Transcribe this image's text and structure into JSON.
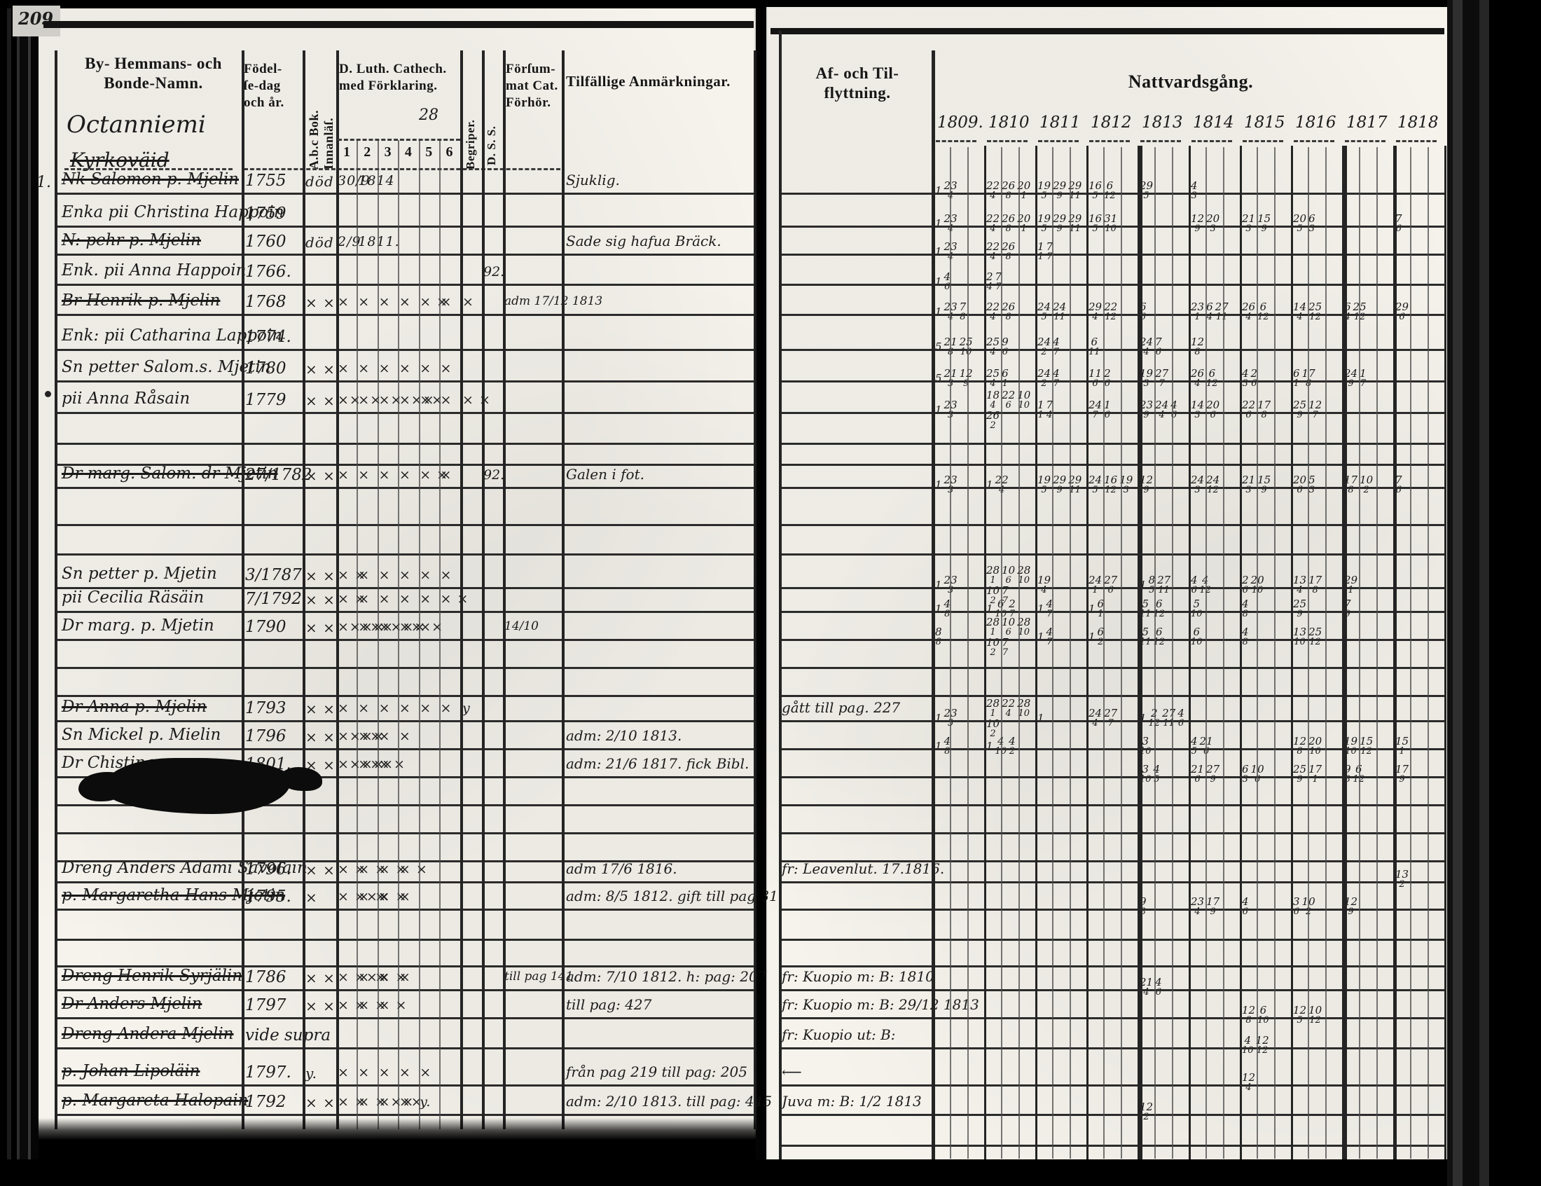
{
  "page_number": "209.",
  "left_page": {
    "header": {
      "col_name_line1": "By- Hemmans- och",
      "col_name_line2": "Bonde-Namn.",
      "place_name": "Octanniemi",
      "place_name_struck": "Kyrkoväid",
      "margin_mark": "1.",
      "col_birth_l1": "Födel-",
      "col_birth_l2": "ſe-dag",
      "col_birth_l3": "och år.",
      "col_abc": "A.b.c Bok. Innanläſ.",
      "col_cat_l1": "D. Luth. Cathech.",
      "col_cat_l2": "med Förklaring.",
      "cat_scribble": "28",
      "cat_subcols": [
        "1",
        "2",
        "3",
        "4",
        "5",
        "6"
      ],
      "col_begriper": "Begriper.",
      "col_dss": "D. S. S.",
      "col_forsummat_l1": "Förſum-",
      "col_forsummat_l2": "mat Cat.",
      "col_forsummat_l3": "Förhör.",
      "col_remarks": "Tilfällige Anmärkningar."
    },
    "rows": [
      {
        "name": "Nk Salomon p. Mjelin",
        "struck": true,
        "birth": "1755",
        "abc": "död",
        "cat": [
          "30/9",
          "1814",
          "",
          "",
          "",
          ""
        ],
        "beg": "",
        "dss": "",
        "fors": "",
        "remark": "Sjuklig.",
        "moving": "",
        "natt": [
          "1 23/4",
          "22/4 26/8 20/1",
          "19/5 29/9 29/11",
          "16/5 6/12",
          "29/5",
          "4/3",
          "",
          "",
          "",
          ""
        ]
      },
      {
        "name": "Enka pii Christina Happoin",
        "struck": false,
        "birth": "1759",
        "abc": "",
        "cat": [
          "",
          "",
          "",
          "",
          "",
          ""
        ],
        "beg": "",
        "dss": "",
        "fors": "",
        "remark": "",
        "moving": "",
        "natt": [
          "1 23/4",
          "22/4 26/8 20/1",
          "19/5 29/9 29/11",
          "16/5 31/10",
          "",
          "12/9 20/3",
          "21/3 15/9",
          "20/5 6/3",
          "",
          "7/6"
        ]
      },
      {
        "name": "N: pehr p. Mjelin",
        "struck": true,
        "birth": "1760",
        "abc": "död",
        "cat": [
          "2/9",
          "1811.",
          "",
          "",
          "",
          ""
        ],
        "beg": "",
        "dss": "",
        "fors": "",
        "remark": "Sade sig hafua Bräck.",
        "moving": "",
        "natt": [
          "1 23/4",
          "22/4 26/8",
          "1/1 7/7",
          "",
          "",
          "",
          "",
          "",
          "",
          ""
        ]
      },
      {
        "name": "Enk. pii Anna Happoin",
        "struck": false,
        "birth": "1766.",
        "abc": "",
        "cat": [
          "",
          "",
          "",
          "",
          "",
          ""
        ],
        "beg": "",
        "dss": "92.",
        "fors": "",
        "remark": "",
        "moving": "",
        "natt": [
          "1 4/6",
          "2/4 7/7",
          "",
          "",
          "",
          "",
          "",
          "",
          "",
          ""
        ]
      },
      {
        "name": "Br Henrik p. Mjelin",
        "struck": true,
        "birth": "1768",
        "abc": "× ×",
        "cat": [
          "×",
          "×",
          "×",
          "×",
          "× ×",
          "×"
        ],
        "beg": "×",
        "dss": "",
        "fors": "adm 17/12 1813",
        "remark": "",
        "moving": "",
        "natt": [
          "1 23/4 7/8",
          "22/4 26/8",
          "24/5 24/11",
          "29/4 22/12",
          "6/6",
          "23/1 6/4 27/11",
          "26/4 6/12",
          "14/4 25/12",
          "6/4 25/12",
          "29/6"
        ]
      },
      {
        "name": "Enk: pii Catharina Lappoin",
        "struck": false,
        "birth": "1774.",
        "abc": "",
        "cat": [
          "",
          "",
          "",
          "",
          "",
          ""
        ],
        "beg": "",
        "dss": "",
        "fors": "",
        "remark": "",
        "moving": "",
        "natt": [
          "5 21/8 25/10",
          "25/4 9/6",
          "24/2 4/7",
          "6/11",
          "24/4 7/6",
          "12/8",
          "",
          "",
          "",
          ""
        ]
      },
      {
        "name": "Sn petter Salom.s. Mjetin",
        "struck": false,
        "birth": "1780",
        "abc": "× ×",
        "cat": [
          "×",
          "×",
          "×",
          "×",
          "×",
          "×"
        ],
        "beg": "",
        "dss": "",
        "fors": "",
        "remark": "",
        "moving": "",
        "natt": [
          "5 21/3 12/9",
          "25/4 6/1",
          "24/2 4/7",
          "11/6 2/6",
          "19/3 27/7",
          "26/4 6/12",
          "4/3 2/6",
          "6/1 17/8",
          "24/9 1/7",
          ""
        ]
      },
      {
        "name": "pii Anna Råsain",
        "struck": false,
        "birth": "1779",
        "abc": "× ×",
        "cat": [
          "××",
          "××",
          "××",
          "×××",
          "××",
          "×"
        ],
        "beg": "× ×",
        "dss": "",
        "fors": "",
        "remark": "",
        "moving": "",
        "natt": [
          "1 23/3",
          "18/4 22/6 10/10 26/2",
          "1/1 7/4",
          "24/7 1/6",
          "23/9 24/4 4/6",
          "14/3 20/6",
          "22/6 17/8",
          "25/9 12/7",
          "",
          ""
        ]
      },
      {
        "name": "Dr marg. Salom. dr Mjetin",
        "struck": true,
        "birth": "27/1782",
        "abc": "× ×",
        "cat": [
          "×",
          "×",
          "×",
          "×",
          "× ×",
          "×"
        ],
        "beg": "",
        "dss": "92.",
        "fors": "",
        "remark": "Galen i fot.",
        "moving": "",
        "natt": [
          "1 23/3",
          "1 22/4",
          "19/5 29/9 29/11",
          "24/5 16/12 19/3",
          "12/9",
          "24/3 24/12",
          "21/3 15/9",
          "20/6 5/3",
          "17/8 10/2",
          "7/6"
        ]
      },
      {
        "name": "Sn petter p. Mjetin",
        "struck": false,
        "birth": "3/1787.",
        "abc": "× ×",
        "cat": [
          "× ×",
          "×",
          "×",
          "×",
          "×",
          "×"
        ],
        "beg": "",
        "dss": "",
        "fors": "",
        "remark": "",
        "moving": "",
        "natt": [
          "1 23/3",
          "28/1 10/6 28/10 10/2 7/7",
          "19/4",
          "24/1 27/6",
          "1 8/5 27/11",
          "4/6 4/12",
          "2/6 20/10",
          "13/4 17/8",
          "29/1",
          ""
        ]
      },
      {
        "name": "pii Cecilia Räsäin",
        "struck": false,
        "birth": "7/1792",
        "abc": "× ×",
        "cat": [
          "× ×",
          "×",
          "×",
          "×",
          "×",
          "× ×"
        ],
        "beg": "",
        "dss": "",
        "fors": "",
        "remark": "",
        "moving": "",
        "natt": [
          "1 4/8",
          "1 6/10 2/7",
          "1 4/7",
          "1 6/1",
          "5/11 6/12",
          "5/10",
          "4/8",
          "25/9",
          "7/9",
          ""
        ]
      },
      {
        "name": "Dr marg. p. Mjetin",
        "struck": false,
        "birth": "1790",
        "abc": "× ×",
        "cat": [
          "××××",
          "×××",
          "××××",
          "××",
          "××",
          ""
        ],
        "beg": "",
        "dss": "",
        "fors": "14/10",
        "remark": "",
        "moving": "",
        "natt": [
          "8/8",
          "28/1 10/6 28/10 10/2 7/7",
          "1 4/7",
          "1 6/2",
          "5/11 6/12",
          "6/10",
          "4/8",
          "13/10 25/12",
          "",
          ""
        ]
      },
      {
        "name": "Dr Anna p. Mjelin",
        "struck": true,
        "birth": "1793",
        "abc": "× ×",
        "cat": [
          "×",
          "×",
          "×",
          "×",
          "×",
          "×"
        ],
        "beg": "y",
        "dss": "",
        "fors": "",
        "remark": "",
        "moving": "gått till pag. 227",
        "natt": [
          "1 23/5",
          "28/1 22/4 28/10 10/2",
          "1",
          "24/4 27/7",
          "1 2/12 27/11 4/6",
          "",
          "",
          "",
          "",
          ""
        ]
      },
      {
        "name": "Sn Mickel p. Mielin",
        "struck": false,
        "birth": "1796",
        "abc": "× ×",
        "cat": [
          "××××",
          "××",
          "×",
          "×",
          "",
          ""
        ],
        "beg": "",
        "dss": "",
        "fors": "",
        "remark": "adm: 2/10 1813.",
        "moving": "",
        "natt": [
          "1 4/8",
          "1 4/10 4/2",
          "",
          "",
          "3/10",
          "4/5 21/6",
          "",
          "12/8 20/10",
          "19/10 15/12",
          "15/1"
        ]
      },
      {
        "name": "Dr Chistina p.",
        "struck": false,
        "birth": "1801.",
        "abc": "× ×",
        "cat": [
          "××××",
          "××××",
          "×",
          "",
          "",
          ""
        ],
        "beg": "",
        "dss": "",
        "fors": "",
        "remark": "adm: 21/6 1817. fick Bibl.",
        "moving": "",
        "natt": [
          "",
          "",
          "",
          "",
          "3/10 4/5",
          "21/6 27/9",
          "6/3 10/6",
          "25/9 17/1",
          "9/8 6/12",
          "17/9"
        ]
      },
      {
        "name": "Dreng Anders Adami Savolain",
        "struck": false,
        "birth": "1796.",
        "abc": "× ×",
        "cat": [
          "× ×",
          "× ×",
          "× ×",
          "× ×",
          "",
          ""
        ],
        "beg": "",
        "dss": "",
        "fors": "",
        "remark": "adm 17/6 1816.",
        "moving": "fr: Leavenlut. 17.1816.",
        "natt": [
          "",
          "",
          "",
          "",
          "",
          "",
          "",
          "",
          "",
          "13/2"
        ]
      },
      {
        "name": "p. Margaretha Hans Mjetin",
        "struck": true,
        "birth": "1795.",
        "abc": "×",
        "cat": [
          "× ×××",
          "× ×",
          "× ×",
          "×",
          "",
          ""
        ],
        "beg": "",
        "dss": "",
        "fors": "",
        "remark": "adm: 8/5 1812. gift till pag 31",
        "moving": "",
        "natt": [
          "",
          "",
          "",
          "",
          "9/8",
          "23/4 17/9",
          "4/6",
          "3/6 10/2",
          "12/9",
          ""
        ]
      },
      {
        "name": "Dreng Henrik Syrjälin",
        "struck": true,
        "birth": "1786",
        "abc": "× ×",
        "cat": [
          "× ×××",
          "× ×",
          "× ×",
          "×",
          "",
          ""
        ],
        "beg": "",
        "dss": "",
        "fors": "till pag 141.",
        "remark": "adm: 7/10 1812. h: pag: 207",
        "moving": "fr: Kuopio m: B: 1810",
        "natt": [
          "",
          "",
          "",
          "",
          "21/4 4/6",
          "",
          "",
          "",
          "",
          ""
        ]
      },
      {
        "name": "Dr Anders Mjelin",
        "struck": true,
        "birth": "1797",
        "abc": "× ×",
        "cat": [
          "× ×",
          "× ×",
          "× ×",
          "",
          "",
          ""
        ],
        "beg": "",
        "dss": "",
        "fors": "",
        "remark": "till pag: 427",
        "moving": "fr: Kuopio m: B: 29/12 1813",
        "natt": [
          "",
          "",
          "",
          "",
          "",
          "",
          "12/8 6/10",
          "12/5 10/12",
          "",
          ""
        ]
      },
      {
        "name": "Dreng Andera Mjelin",
        "struck": true,
        "birth": "vide supra",
        "abc": "",
        "cat": [
          "",
          "",
          "",
          "",
          "",
          ""
        ],
        "beg": "",
        "dss": "",
        "fors": "",
        "remark": "",
        "moving": "fr: Kuopio ut: B:",
        "natt": [
          "",
          "",
          "",
          "",
          "",
          "",
          "4/10 12/12",
          "",
          "",
          ""
        ]
      },
      {
        "name": "p. Johan Lipoläin",
        "struck": true,
        "birth": "1797.",
        "abc": "y.",
        "cat": [
          "×",
          "×",
          "×",
          "×",
          "×",
          ""
        ],
        "beg": "",
        "dss": "",
        "fors": "",
        "remark": "från pag 219 till pag: 205",
        "moving": "⟵",
        "natt": [
          "",
          "",
          "",
          "",
          "",
          "",
          "12/4",
          "",
          "",
          ""
        ]
      },
      {
        "name": "p. Margareta Halopain",
        "struck": true,
        "birth": "1792",
        "abc": "× ×",
        "cat": [
          "× ×",
          "× ×",
          "×××",
          "××",
          "y.",
          ""
        ],
        "beg": "",
        "dss": "",
        "fors": "",
        "remark": "adm: 2/10 1813. till pag: 445",
        "moving": "Juva m: B: 1/2 1813",
        "natt": [
          "",
          "",
          "",
          "",
          "12/2",
          "",
          "",
          "",
          "",
          ""
        ]
      }
    ]
  },
  "right_page": {
    "header": {
      "col_moving_l1": "Af- och Til-",
      "col_moving_l2": "flyttning.",
      "col_communion": "Nattvardsgång.",
      "years": [
        "1809.",
        "1810",
        "1811",
        "1812",
        "1813",
        "1814",
        "1815",
        "1816",
        "1817",
        "1818"
      ]
    }
  }
}
